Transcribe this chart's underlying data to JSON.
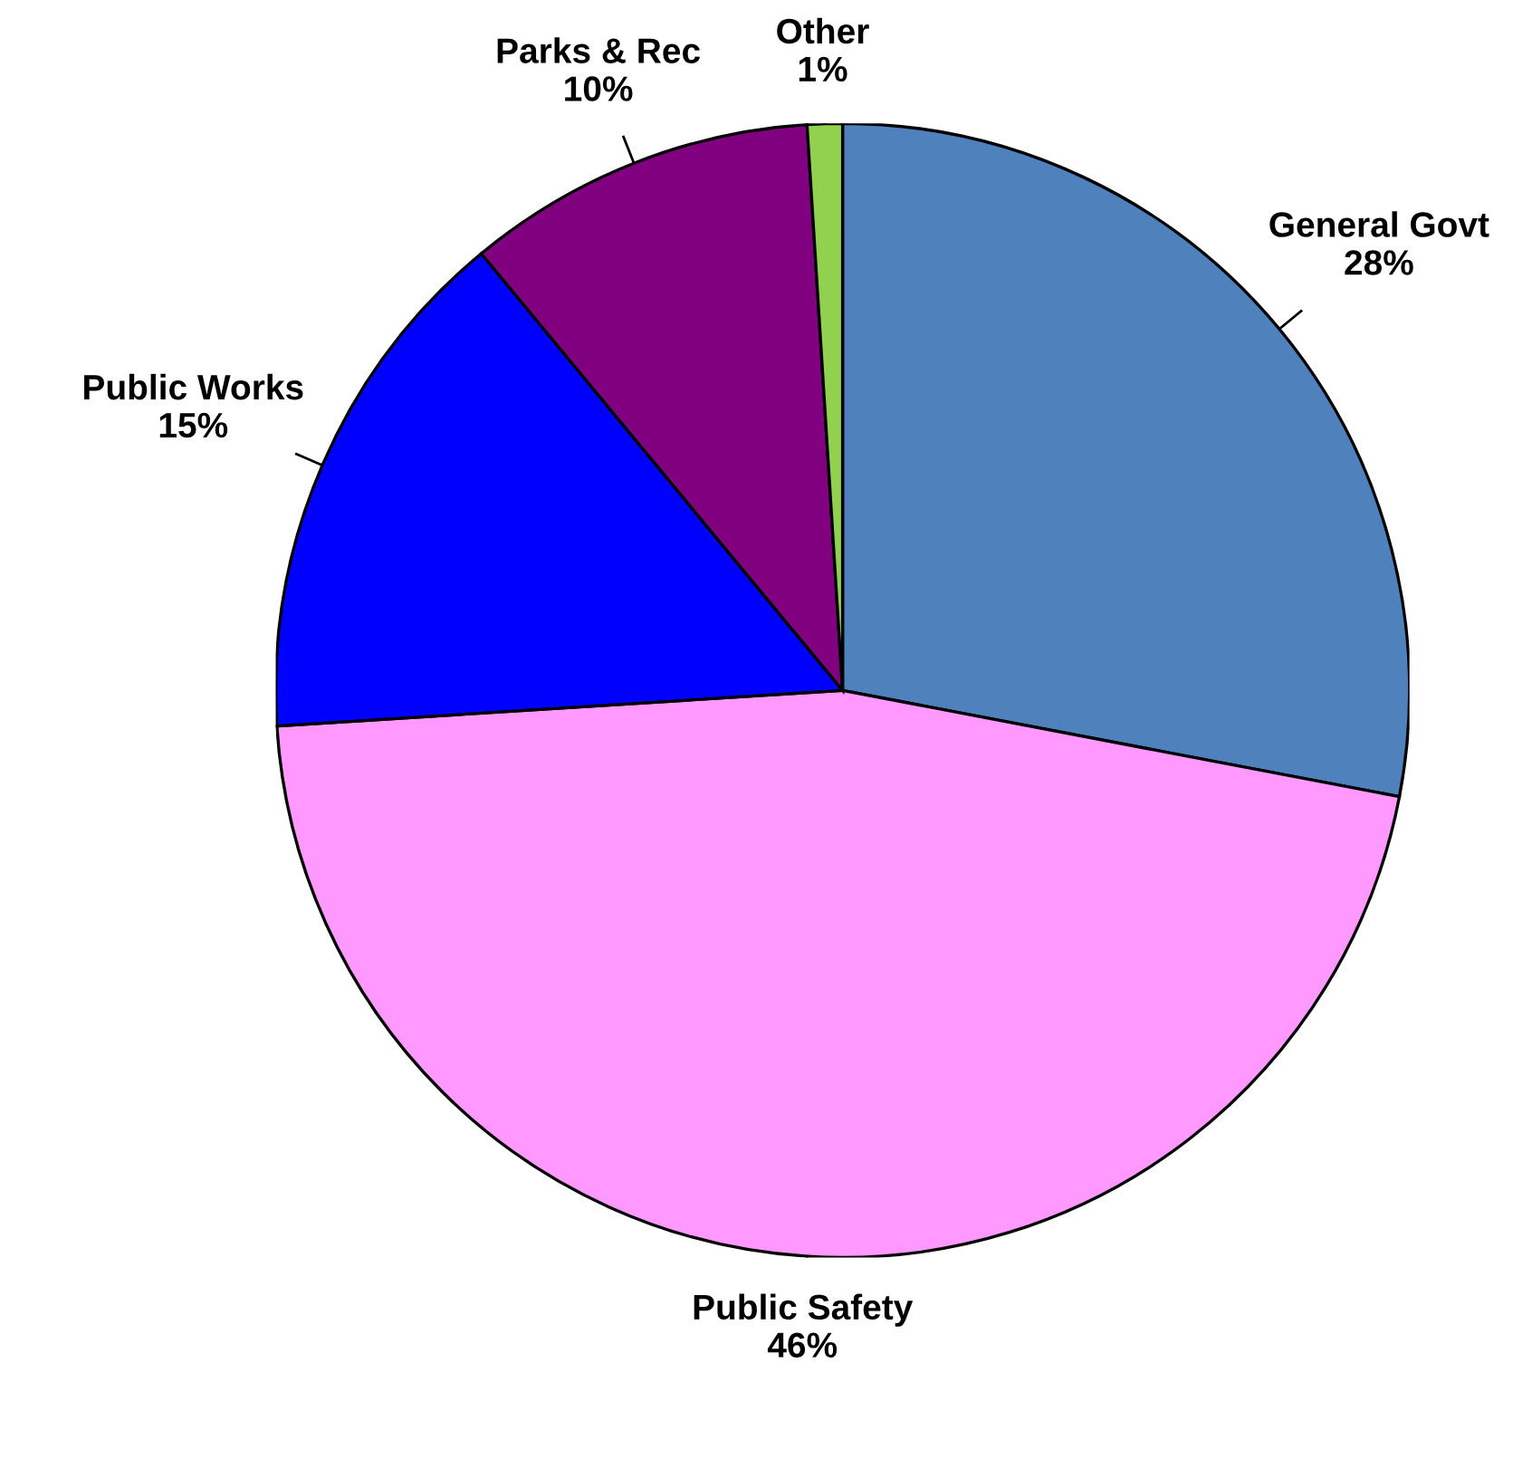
{
  "chart_data": {
    "type": "pie",
    "categories": [
      "General Govt",
      "Public Safety",
      "Public Works",
      "Parks & Rec",
      "Other"
    ],
    "values": [
      28,
      46,
      15,
      10,
      1
    ],
    "value_labels": [
      "28%",
      "46%",
      "15%",
      "10%",
      "1%"
    ],
    "colors": [
      "#4f81bd",
      "#ff99ff",
      "#0000ff",
      "#800080",
      "#92d050"
    ]
  }
}
